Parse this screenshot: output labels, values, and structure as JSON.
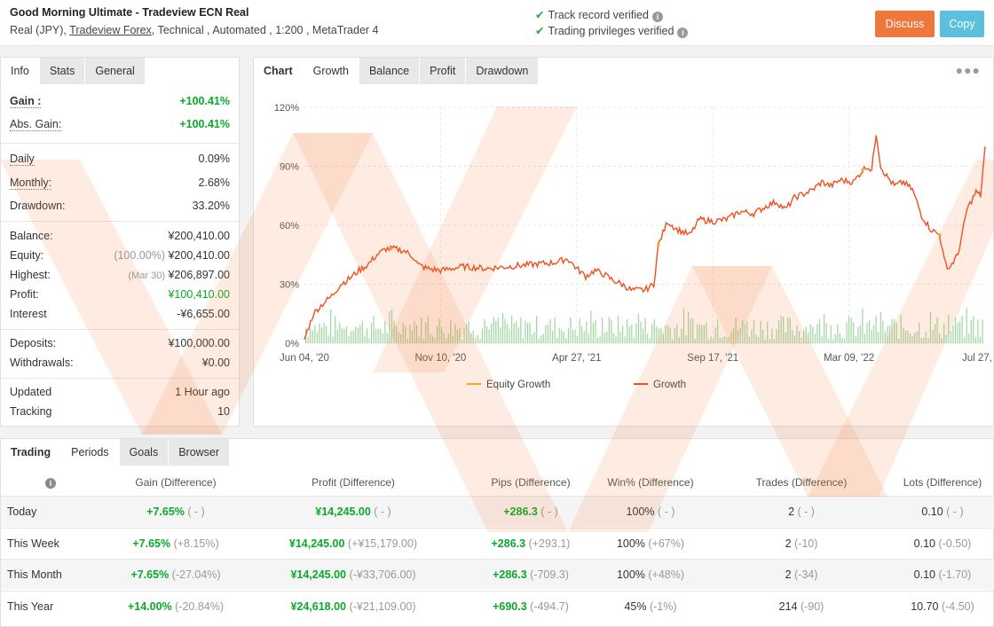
{
  "header": {
    "system_name": "Good Morning Ultimate - Tradeview ECN Real",
    "meta_prefix": "Real (JPY),",
    "broker": "Tradeview Forex",
    "meta_suffix": ", Technical , Automated , 1:200 , MetaTrader 4",
    "track_record": "Track record verified",
    "trading_privileges": "Trading privileges verified",
    "discuss_label": "Discuss",
    "copy_label": "Copy"
  },
  "stats_tabs": [
    "Info",
    "Stats",
    "General"
  ],
  "stats": {
    "gain_label": "Gain :",
    "gain": "+100.41%",
    "abs_gain_label": "Abs. Gain:",
    "abs_gain": "+100.41%",
    "daily_label": "Daily",
    "daily": "0.09%",
    "monthly_label": "Monthly:",
    "monthly": "2.68%",
    "drawdown_label": "Drawdown:",
    "drawdown": "33.20%",
    "balance_label": "Balance:",
    "balance": "¥200,410.00",
    "equity_label": "Equity:",
    "equity_pct": "(100.00%)",
    "equity": "¥200,410.00",
    "highest_label": "Highest:",
    "highest_date": "(Mar 30)",
    "highest": "¥206,897.00",
    "profit_label": "Profit:",
    "profit": "¥100,410.00",
    "interest_label": "Interest",
    "interest": "-¥6,655.00",
    "deposits_label": "Deposits:",
    "deposits": "¥100,000.00",
    "withdrawals_label": "Withdrawals:",
    "withdrawals": "¥0.00",
    "updated_label": "Updated",
    "updated": "1 Hour ago",
    "tracking_label": "Tracking",
    "tracking": "10"
  },
  "chart_tabs": [
    "Chart",
    "Growth",
    "Balance",
    "Profit",
    "Drawdown"
  ],
  "chart_data": {
    "type": "line",
    "y_ticks": [
      "0%",
      "30%",
      "60%",
      "90%",
      "120%"
    ],
    "ylim": [
      0,
      120
    ],
    "x_ticks": [
      "Jun 04, '20",
      "Nov 10, '20",
      "Apr 27, '21",
      "Sep 17, '21",
      "Mar 09, '22",
      "Jul 27, '22"
    ],
    "legend": [
      "Equity Growth",
      "Growth"
    ],
    "colors": {
      "growth": "#f0501e",
      "equity": "#f5b01e",
      "bars": "#9fd6a0"
    },
    "growth_points": [
      [
        0,
        2
      ],
      [
        2,
        15
      ],
      [
        4,
        20
      ],
      [
        6,
        24
      ],
      [
        8,
        30
      ],
      [
        10,
        33
      ],
      [
        12,
        37
      ],
      [
        14,
        40
      ],
      [
        16,
        45
      ],
      [
        18,
        48
      ],
      [
        20,
        48
      ],
      [
        22,
        47
      ],
      [
        24,
        44
      ],
      [
        25,
        40
      ],
      [
        27,
        38
      ],
      [
        30,
        37
      ],
      [
        35,
        39
      ],
      [
        40,
        38
      ],
      [
        45,
        39
      ],
      [
        50,
        40
      ],
      [
        55,
        41
      ],
      [
        58,
        43
      ],
      [
        60,
        38
      ],
      [
        62,
        34
      ],
      [
        64,
        37
      ],
      [
        66,
        35
      ],
      [
        68,
        32
      ],
      [
        70,
        30
      ],
      [
        72,
        27
      ],
      [
        75,
        27
      ],
      [
        77,
        30
      ],
      [
        78,
        50
      ],
      [
        80,
        62
      ],
      [
        82,
        58
      ],
      [
        85,
        55
      ],
      [
        87,
        63
      ],
      [
        90,
        62
      ],
      [
        93,
        63
      ],
      [
        96,
        67
      ],
      [
        99,
        66
      ],
      [
        102,
        70
      ],
      [
        104,
        72
      ],
      [
        106,
        68
      ],
      [
        108,
        74
      ],
      [
        110,
        76
      ],
      [
        112,
        78
      ],
      [
        114,
        82
      ],
      [
        116,
        80
      ],
      [
        118,
        83
      ],
      [
        121,
        82
      ],
      [
        123,
        88
      ],
      [
        124,
        90
      ],
      [
        125,
        88
      ],
      [
        126,
        107
      ],
      [
        127,
        90
      ],
      [
        128,
        86
      ],
      [
        130,
        80
      ],
      [
        132,
        82
      ],
      [
        134,
        78
      ],
      [
        136,
        65
      ],
      [
        138,
        58
      ],
      [
        140,
        55
      ],
      [
        141,
        42
      ],
      [
        142,
        38
      ],
      [
        144,
        45
      ],
      [
        145,
        56
      ],
      [
        146,
        68
      ],
      [
        148,
        77
      ],
      [
        149,
        75
      ],
      [
        150,
        100
      ]
    ],
    "period": "Jun 04, '20 – Jul 27, '22"
  },
  "trading_tabs": [
    "Trading",
    "Periods",
    "Goals",
    "Browser"
  ],
  "trading_headers": [
    "Gain (Difference)",
    "Profit (Difference)",
    "Pips (Difference)",
    "Win% (Difference)",
    "Trades (Difference)",
    "Lots (Difference)"
  ],
  "trading_rows": [
    {
      "period": "Today",
      "gain": "+7.65%",
      "gain_diff": "( - )",
      "profit": "¥14,245.00",
      "profit_diff": "( - )",
      "pips": "+286.3",
      "pips_diff": "( - )",
      "win": "100%",
      "win_diff": "( - )",
      "trades": "2",
      "trades_diff": "( - )",
      "lots": "0.10",
      "lots_diff": "( - )"
    },
    {
      "period": "This Week",
      "gain": "+7.65%",
      "gain_diff": "(+8.15%)",
      "profit": "¥14,245.00",
      "profit_diff": "(+¥15,179.00)",
      "pips": "+286.3",
      "pips_diff": "(+293.1)",
      "win": "100%",
      "win_diff": "(+67%)",
      "trades": "2",
      "trades_diff": "(-10)",
      "lots": "0.10",
      "lots_diff": "(-0.50)"
    },
    {
      "period": "This Month",
      "gain": "+7.65%",
      "gain_diff": "(-27.04%)",
      "profit": "¥14,245.00",
      "profit_diff": "(-¥33,706.00)",
      "pips": "+286.3",
      "pips_diff": "(-709.3)",
      "win": "100%",
      "win_diff": "(+48%)",
      "trades": "2",
      "trades_diff": "(-34)",
      "lots": "0.10",
      "lots_diff": "(-1.70)"
    },
    {
      "period": "This Year",
      "gain": "+14.00%",
      "gain_diff": "(-20.84%)",
      "profit": "¥24,618.00",
      "profit_diff": "(-¥21,109.00)",
      "pips": "+690.3",
      "pips_diff": "(-494.7)",
      "win": "45%",
      "win_diff": "(-1%)",
      "trades": "214",
      "trades_diff": "(-90)",
      "lots": "10.70",
      "lots_diff": "(-4.50)"
    }
  ]
}
